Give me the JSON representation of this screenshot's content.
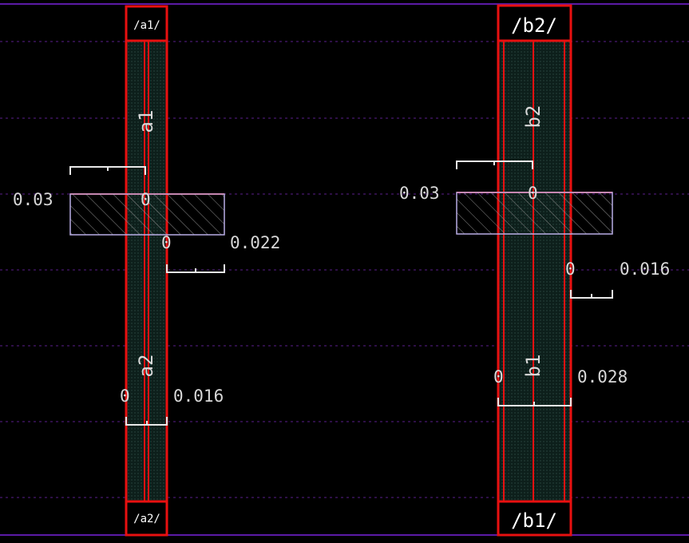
{
  "colors": {
    "background": "#000000",
    "rail": "#5b1aa6",
    "grid": "#5a1e8c",
    "metal_fill": "#0d1f1b",
    "metal_dots": "#2c4a42",
    "outline": "#e81010",
    "wire": "#e81010",
    "dimension": "#e8e8e8",
    "poly_outline": "#b9aee6",
    "hatch": "#8d8d8d"
  },
  "left_device": {
    "top_terminal": "/a1/",
    "bottom_terminal": "/a2/",
    "net_top": "a1",
    "net_bottom": "a2",
    "gate_label": "0.03",
    "gate_zero": "0",
    "right_zero": "0",
    "right_value": "0.022",
    "bottom_zero": "0",
    "bottom_value": "0.016"
  },
  "right_device": {
    "top_terminal": "/b2/",
    "bottom_terminal": "/b1/",
    "net_top": "b2",
    "net_bottom": "b1",
    "gate_label": "0.03",
    "gate_zero": "0",
    "right_zero": "0",
    "right_value": "0.016",
    "bottom_left_zero": "0",
    "bottom_value": "0.028"
  }
}
